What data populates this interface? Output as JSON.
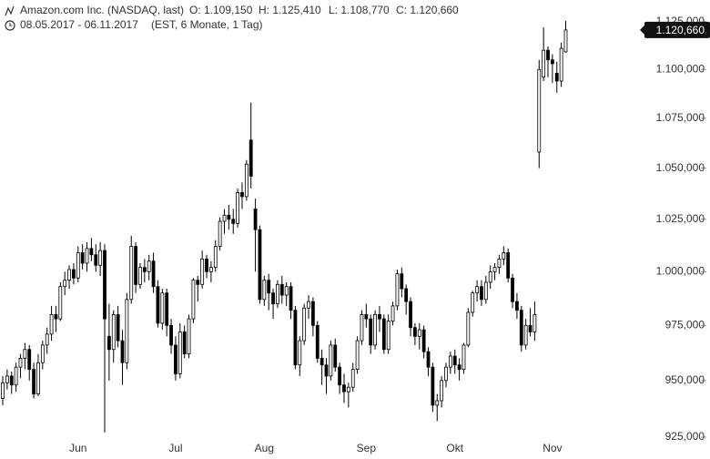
{
  "chart_data": {
    "type": "candlestick",
    "title": "Amazon.com Inc. (NASDAQ, last)",
    "ohlc_labels": [
      "O: 1.109,150",
      "H: 1.125,410",
      "L: 1.108,770",
      "C: 1.120,660"
    ],
    "subtitle": "08.05.2017 - 06.11.2017",
    "subtitle_note": "(EST, 6 Monate, 1 Tag)",
    "last": {
      "value": 1120.66,
      "label": "1.120,660"
    },
    "log_scale": true,
    "up_color": "#ffffff",
    "down_color": "#000000",
    "ylim": [
      915.5,
      1136.6
    ],
    "yticks": [
      {
        "value": 925,
        "label": "925,000"
      },
      {
        "value": 950,
        "label": "950,000"
      },
      {
        "value": 975,
        "label": "975,000"
      },
      {
        "value": 1000,
        "label": "1.000,000"
      },
      {
        "value": 1025,
        "label": "1.025,000"
      },
      {
        "value": 1050,
        "label": "1.050,000"
      },
      {
        "value": 1075,
        "label": "1.075,000"
      },
      {
        "value": 1100,
        "label": "1.100,000"
      },
      {
        "value": 1125,
        "label": "1.125,000"
      }
    ],
    "categories": [
      null,
      null,
      null,
      null,
      null,
      null,
      null,
      null,
      null,
      null,
      null,
      null,
      null,
      null,
      null,
      null,
      null,
      "Jun",
      null,
      null,
      null,
      null,
      null,
      null,
      null,
      null,
      null,
      null,
      null,
      null,
      null,
      null,
      null,
      null,
      null,
      null,
      null,
      null,
      null,
      "Jul",
      null,
      null,
      null,
      null,
      null,
      null,
      null,
      null,
      null,
      null,
      null,
      null,
      null,
      null,
      null,
      null,
      null,
      null,
      null,
      "Aug",
      null,
      null,
      null,
      null,
      null,
      null,
      null,
      null,
      null,
      null,
      null,
      null,
      null,
      null,
      null,
      null,
      null,
      null,
      null,
      null,
      null,
      null,
      "Sep",
      null,
      null,
      null,
      null,
      null,
      null,
      null,
      null,
      null,
      null,
      null,
      null,
      null,
      null,
      null,
      null,
      null,
      null,
      null,
      "Okt",
      null,
      null,
      null,
      null,
      null,
      null,
      null,
      null,
      null,
      null,
      null,
      null,
      null,
      null,
      null,
      null,
      null,
      null,
      null,
      null,
      null,
      "Nov",
      null,
      null,
      null
    ],
    "ohlc": [
      [
        942,
        952,
        939,
        949
      ],
      [
        949,
        955,
        946,
        952
      ],
      [
        952,
        954,
        944,
        948
      ],
      [
        948,
        958,
        945,
        956
      ],
      [
        956,
        962,
        951,
        960
      ],
      [
        960,
        967,
        955,
        964
      ],
      [
        964,
        966,
        950,
        955
      ],
      [
        955,
        958,
        942,
        944
      ],
      [
        944,
        962,
        943,
        958
      ],
      [
        958,
        968,
        955,
        966
      ],
      [
        966,
        974,
        962,
        971
      ],
      [
        971,
        984,
        968,
        980
      ],
      [
        980,
        984,
        972,
        978
      ],
      [
        978,
        995,
        977,
        993
      ],
      [
        993,
        1000,
        989,
        996
      ],
      [
        996,
        1003,
        992,
        1001
      ],
      [
        1001,
        1004,
        994,
        997
      ],
      [
        997,
        1012,
        995,
        1009
      ],
      [
        1009,
        1013,
        1001,
        1004
      ],
      [
        1004,
        1014,
        1000,
        1011
      ],
      [
        1011,
        1016,
        1005,
        1008
      ],
      [
        1008,
        1013,
        1000,
        1003
      ],
      [
        1003,
        1014,
        998,
        1010
      ],
      [
        1010,
        1013,
        927,
        978
      ],
      [
        970,
        985,
        950,
        964
      ],
      [
        964,
        982,
        958,
        980
      ],
      [
        980,
        984,
        965,
        968
      ],
      [
        968,
        973,
        948,
        958
      ],
      [
        958,
        990,
        955,
        987
      ],
      [
        987,
        1017,
        985,
        1012
      ],
      [
        1012,
        1014,
        990,
        994
      ],
      [
        994,
        1004,
        992,
        1002
      ],
      [
        1002,
        1006,
        995,
        1000
      ],
      [
        1000,
        1008,
        996,
        1005
      ],
      [
        1005,
        1009,
        990,
        993
      ],
      [
        993,
        996,
        974,
        976
      ],
      [
        976,
        992,
        973,
        990
      ],
      [
        990,
        992,
        970,
        975
      ],
      [
        975,
        978,
        962,
        966
      ],
      [
        966,
        970,
        950,
        953
      ],
      [
        953,
        976,
        951,
        972
      ],
      [
        972,
        975,
        960,
        962
      ],
      [
        962,
        980,
        960,
        978
      ],
      [
        978,
        997,
        976,
        996
      ],
      [
        996,
        998,
        986,
        994
      ],
      [
        994,
        1010,
        992,
        1006
      ],
      [
        1006,
        1008,
        997,
        1000
      ],
      [
        1000,
        1005,
        995,
        1002
      ],
      [
        1002,
        1015,
        1000,
        1012
      ],
      [
        1012,
        1026,
        1010,
        1024
      ],
      [
        1024,
        1030,
        1018,
        1027
      ],
      [
        1027,
        1032,
        1020,
        1025
      ],
      [
        1025,
        1030,
        1018,
        1023
      ],
      [
        1023,
        1040,
        1021,
        1038
      ],
      [
        1038,
        1043,
        1030,
        1036
      ],
      [
        1036,
        1054,
        1034,
        1052
      ],
      [
        1064,
        1083,
        1040,
        1046
      ],
      [
        1030,
        1035,
        1000,
        1020
      ],
      [
        1020,
        1022,
        985,
        987
      ],
      [
        987,
        998,
        984,
        996
      ],
      [
        996,
        999,
        982,
        990
      ],
      [
        990,
        992,
        978,
        985
      ],
      [
        985,
        996,
        983,
        994
      ],
      [
        994,
        998,
        985,
        989
      ],
      [
        989,
        995,
        984,
        993
      ],
      [
        993,
        995,
        978,
        982
      ],
      [
        982,
        984,
        955,
        957
      ],
      [
        957,
        970,
        952,
        968
      ],
      [
        968,
        985,
        966,
        983
      ],
      [
        983,
        989,
        978,
        986
      ],
      [
        986,
        988,
        970,
        975
      ],
      [
        975,
        977,
        958,
        960
      ],
      [
        960,
        964,
        948,
        957
      ],
      [
        957,
        960,
        944,
        952
      ],
      [
        952,
        968,
        950,
        966
      ],
      [
        966,
        969,
        954,
        956
      ],
      [
        956,
        958,
        944,
        948
      ],
      [
        948,
        953,
        940,
        945
      ],
      [
        945,
        949,
        938,
        947
      ],
      [
        947,
        958,
        945,
        955
      ],
      [
        955,
        970,
        953,
        968
      ],
      [
        968,
        982,
        966,
        980
      ],
      [
        980,
        985,
        974,
        978
      ],
      [
        978,
        980,
        962,
        966
      ],
      [
        966,
        982,
        964,
        980
      ],
      [
        980,
        984,
        972,
        978
      ],
      [
        978,
        980,
        962,
        964
      ],
      [
        964,
        980,
        962,
        977
      ],
      [
        977,
        986,
        975,
        984
      ],
      [
        984,
        1001,
        982,
        999
      ],
      [
        999,
        1002,
        988,
        992
      ],
      [
        992,
        994,
        980,
        986
      ],
      [
        986,
        988,
        970,
        974
      ],
      [
        974,
        976,
        966,
        970
      ],
      [
        970,
        976,
        964,
        973
      ],
      [
        973,
        975,
        960,
        963
      ],
      [
        963,
        965,
        952,
        956
      ],
      [
        956,
        958,
        936,
        939
      ],
      [
        939,
        944,
        932,
        941
      ],
      [
        941,
        952,
        938,
        950
      ],
      [
        950,
        958,
        947,
        956
      ],
      [
        956,
        963,
        953,
        961
      ],
      [
        961,
        964,
        953,
        957
      ],
      [
        957,
        960,
        950,
        955
      ],
      [
        955,
        967,
        953,
        966
      ],
      [
        966,
        983,
        965,
        981
      ],
      [
        981,
        991,
        979,
        990
      ],
      [
        990,
        996,
        986,
        993
      ],
      [
        993,
        996,
        984,
        987
      ],
      [
        987,
        998,
        985,
        995
      ],
      [
        995,
        1003,
        992,
        1000
      ],
      [
        1000,
        1004,
        996,
        1002
      ],
      [
        1002,
        1008,
        999,
        1006
      ],
      [
        1006,
        1012,
        1003,
        1009
      ],
      [
        1009,
        1011,
        995,
        997
      ],
      [
        997,
        999,
        983,
        986
      ],
      [
        986,
        990,
        978,
        982
      ],
      [
        982,
        984,
        963,
        966
      ],
      [
        966,
        978,
        964,
        975
      ],
      [
        975,
        983,
        970,
        972
      ],
      [
        972,
        986,
        968,
        980
      ],
      [
        1058,
        1105,
        1050,
        1100
      ],
      [
        1096,
        1122,
        1094,
        1110
      ],
      [
        1110,
        1112,
        1096,
        1105
      ],
      [
        1105,
        1108,
        1093,
        1103
      ],
      [
        1098,
        1104,
        1088,
        1094
      ],
      [
        1094,
        1114,
        1091,
        1111
      ],
      [
        1109.15,
        1125.41,
        1108.77,
        1120.66
      ]
    ]
  }
}
